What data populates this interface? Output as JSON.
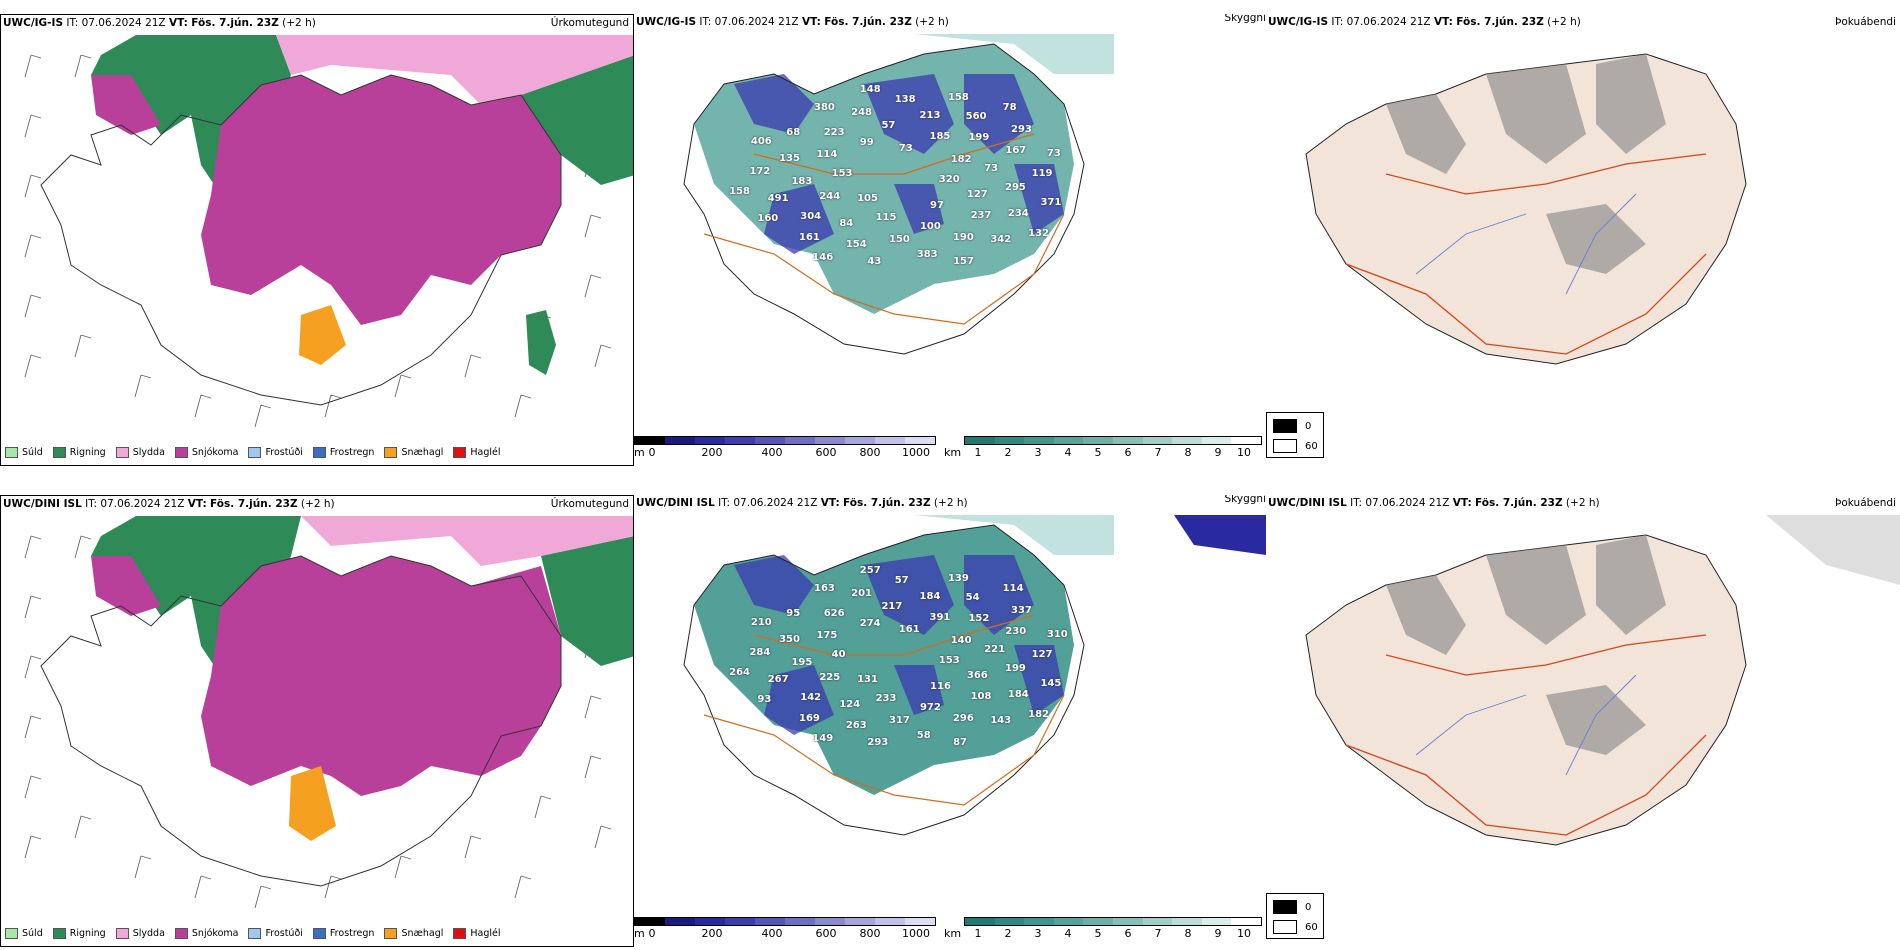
{
  "rows": [
    {
      "model": "UWC/IG-IS",
      "it_label": "IT:",
      "it_value": "07.06.2024 21Z",
      "vt_label": "VT:",
      "vt_value": "Fös. 7.jún. 23Z",
      "lead": "(+2 h)"
    },
    {
      "model": "UWC/DINI ISL",
      "it_label": "IT:",
      "it_value": "07.06.2024 21Z",
      "vt_label": "VT:",
      "vt_value": "Fös. 7.jún. 23Z",
      "lead": "(+2 h)"
    }
  ],
  "titles": {
    "precip": "Úrkomutegund",
    "cloud": "Skyggni",
    "fog": "Þokuábendi"
  },
  "precip_legend": [
    {
      "label": "Súld",
      "color": "#a6e8a6"
    },
    {
      "label": "Rigning",
      "color": "#2e8b57"
    },
    {
      "label": "Slydda",
      "color": "#f0a8d8"
    },
    {
      "label": "Snjókoma",
      "color": "#b8409a"
    },
    {
      "label": "Frostúði",
      "color": "#9ec8f0"
    },
    {
      "label": "Frostregn",
      "color": "#3a6fc0"
    },
    {
      "label": "Snæhagl",
      "color": "#f5a020"
    },
    {
      "label": "Haglél",
      "color": "#e01010"
    }
  ],
  "ceiling_bar": {
    "unit": "m",
    "ticks": [
      "0",
      "200",
      "400",
      "600",
      "800",
      "1000"
    ],
    "colors": [
      "#000000",
      "#1a1a80",
      "#2a2aa0",
      "#3d3db0",
      "#5555b8",
      "#6e6ec4",
      "#8a8ad0",
      "#a6a6dc",
      "#c2c2e8",
      "#dcdcf2"
    ]
  },
  "visibility_bar": {
    "unit": "km",
    "ticks": [
      "1",
      "2",
      "3",
      "4",
      "5",
      "6",
      "7",
      "8",
      "9",
      "10"
    ],
    "colors": [
      "#1f7a72",
      "#2e8a80",
      "#3f968c",
      "#55a39a",
      "#6cb0a8",
      "#86bfb8",
      "#a0cec8",
      "#bcded9",
      "#d8eeeb",
      "#ffffff"
    ]
  },
  "fog_legend": [
    {
      "label": "0",
      "color": "#000000"
    },
    {
      "label": "60",
      "color": "#ffffff"
    }
  ],
  "cloud_labels_top": [
    "320",
    "105",
    "73",
    "97",
    "153",
    "182",
    "115",
    "99",
    "127",
    "244",
    "185",
    "100",
    "114",
    "73",
    "84",
    "57",
    "237",
    "183",
    "199",
    "150",
    "223",
    "295",
    "304",
    "213",
    "190",
    "135",
    "167",
    "154",
    "248",
    "234",
    "491",
    "560",
    "383",
    "68",
    "119",
    "161",
    "138",
    "342",
    "172",
    "293",
    "43",
    "380",
    "371",
    "160",
    "158",
    "157",
    "406",
    "73",
    "146",
    "148",
    "132",
    "158",
    "78"
  ],
  "cloud_labels_bottom": [
    "153",
    "131",
    "161",
    "116",
    "40",
    "140",
    "233",
    "274",
    "366",
    "225",
    "391",
    "972",
    "175",
    "221",
    "124",
    "217",
    "108",
    "195",
    "152",
    "317",
    "626",
    "199",
    "142",
    "184",
    "296",
    "350",
    "230",
    "263",
    "201",
    "184",
    "267",
    "54",
    "58",
    "95",
    "127",
    "169",
    "57",
    "143",
    "284",
    "337",
    "293",
    "163",
    "145",
    "93",
    "139",
    "87",
    "210",
    "310",
    "149",
    "257",
    "182",
    "264",
    "114"
  ]
}
